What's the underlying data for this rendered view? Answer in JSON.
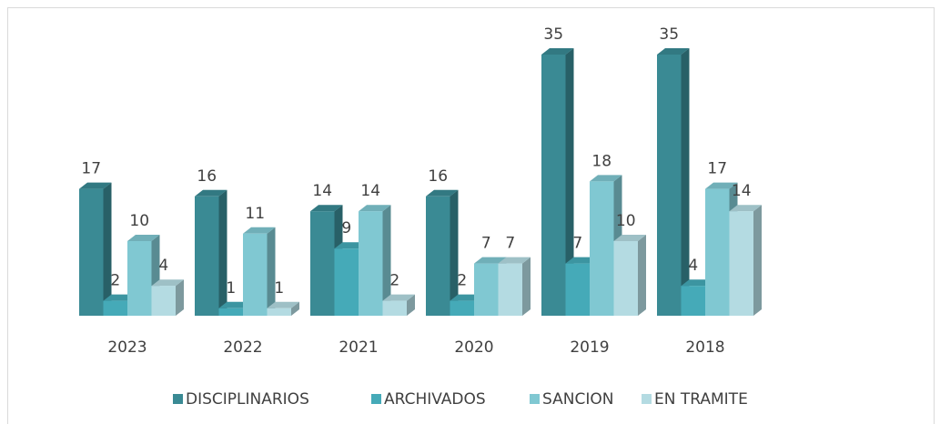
{
  "chart_data": {
    "type": "bar3d",
    "categories": [
      "2023",
      "2022",
      "2021",
      "2020",
      "2019",
      "2018"
    ],
    "series": [
      {
        "name": "DISCIPLINARIOS",
        "color": "#3a8a94",
        "values": [
          17,
          16,
          14,
          16,
          35,
          35
        ]
      },
      {
        "name": "ARCHIVADOS",
        "color": "#45aab8",
        "values": [
          2,
          1,
          9,
          2,
          7,
          4
        ]
      },
      {
        "name": "SANCION",
        "color": "#80c8d2",
        "values": [
          10,
          11,
          14,
          7,
          18,
          17
        ]
      },
      {
        "name": "EN TRAMITE",
        "color": "#b4dbe2",
        "values": [
          4,
          1,
          2,
          7,
          10,
          14
        ]
      }
    ],
    "legend": "bottom"
  }
}
